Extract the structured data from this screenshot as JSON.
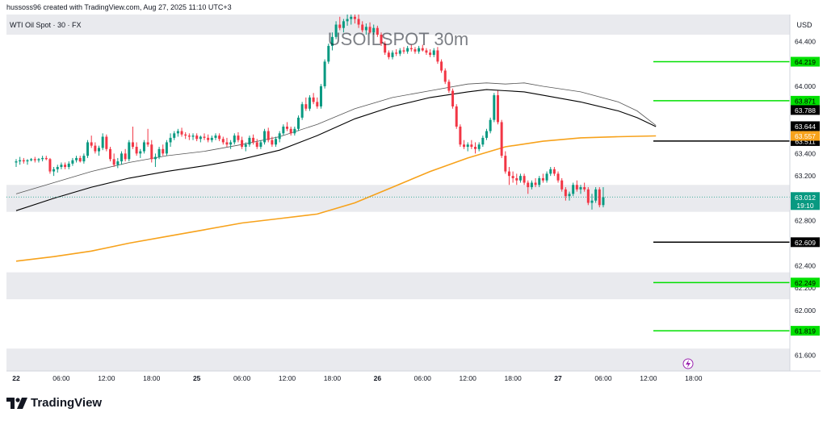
{
  "header": {
    "credit": "hussoss96 created with TradingView.com, Aug 27, 2025 11:10 UTC+3"
  },
  "footer": {
    "brand": "TradingView"
  },
  "chart_data": {
    "type": "candlestick",
    "symbol_label": "WTI Oil Spot · 30 · FX",
    "watermark": "USOILSPOT 30m",
    "currency": "USD",
    "ylim": [
      61.46,
      64.64
    ],
    "y_ticks": [
      61.6,
      61.8,
      62.0,
      62.2,
      62.4,
      62.6,
      62.8,
      63.0,
      63.2,
      63.4,
      63.6,
      63.8,
      64.0,
      64.2,
      64.4
    ],
    "x_ticks": [
      {
        "label": "22",
        "i": 0
      },
      {
        "label": "06:00",
        "i": 12
      },
      {
        "label": "12:00",
        "i": 24
      },
      {
        "label": "18:00",
        "i": 36
      },
      {
        "label": "25",
        "i": 48
      },
      {
        "label": "06:00",
        "i": 60
      },
      {
        "label": "12:00",
        "i": 72
      },
      {
        "label": "18:00",
        "i": 84
      },
      {
        "label": "26",
        "i": 96
      },
      {
        "label": "06:00",
        "i": 108
      },
      {
        "label": "12:00",
        "i": 120
      },
      {
        "label": "18:00",
        "i": 132
      },
      {
        "label": "27",
        "i": 144
      },
      {
        "label": "06:00",
        "i": 156
      },
      {
        "label": "12:00",
        "i": 168
      },
      {
        "label": "18:00",
        "i": 180
      }
    ],
    "candles": [
      [
        63.32,
        63.35,
        63.28,
        63.33
      ],
      [
        63.33,
        63.37,
        63.3,
        63.34
      ],
      [
        63.34,
        63.36,
        63.31,
        63.33
      ],
      [
        63.33,
        63.35,
        63.3,
        63.34
      ],
      [
        63.34,
        63.36,
        63.33,
        63.35
      ],
      [
        63.35,
        63.37,
        63.32,
        63.34
      ],
      [
        63.34,
        63.36,
        63.32,
        63.35
      ],
      [
        63.35,
        63.38,
        63.33,
        63.36
      ],
      [
        63.36,
        63.38,
        63.34,
        63.35
      ],
      [
        63.35,
        63.36,
        63.22,
        63.24
      ],
      [
        63.24,
        63.28,
        63.2,
        63.26
      ],
      [
        63.26,
        63.3,
        63.23,
        63.28
      ],
      [
        63.28,
        63.32,
        63.26,
        63.3
      ],
      [
        63.3,
        63.32,
        63.26,
        63.28
      ],
      [
        63.28,
        63.33,
        63.26,
        63.31
      ],
      [
        63.31,
        63.36,
        63.29,
        63.34
      ],
      [
        63.34,
        63.38,
        63.32,
        63.36
      ],
      [
        63.36,
        63.38,
        63.32,
        63.33
      ],
      [
        63.33,
        63.4,
        63.31,
        63.38
      ],
      [
        63.38,
        63.52,
        63.36,
        63.5
      ],
      [
        63.5,
        63.56,
        63.45,
        63.47
      ],
      [
        63.47,
        63.5,
        63.4,
        63.42
      ],
      [
        63.42,
        63.47,
        63.38,
        63.45
      ],
      [
        63.45,
        63.58,
        63.43,
        63.55
      ],
      [
        63.55,
        63.57,
        63.42,
        63.44
      ],
      [
        63.44,
        63.46,
        63.33,
        63.35
      ],
      [
        63.35,
        63.4,
        63.28,
        63.3
      ],
      [
        63.3,
        63.36,
        63.27,
        63.33
      ],
      [
        63.33,
        63.42,
        63.3,
        63.4
      ],
      [
        63.4,
        63.44,
        63.33,
        63.35
      ],
      [
        63.35,
        63.52,
        63.33,
        63.5
      ],
      [
        63.5,
        63.64,
        63.44,
        63.46
      ],
      [
        63.46,
        63.5,
        63.38,
        63.4
      ],
      [
        63.4,
        63.44,
        63.36,
        63.42
      ],
      [
        63.42,
        63.52,
        63.4,
        63.5
      ],
      [
        63.5,
        63.62,
        63.46,
        63.48
      ],
      [
        63.48,
        63.52,
        63.32,
        63.35
      ],
      [
        63.35,
        63.4,
        63.28,
        63.37
      ],
      [
        63.37,
        63.46,
        63.35,
        63.44
      ],
      [
        63.44,
        63.48,
        63.38,
        63.4
      ],
      [
        63.4,
        63.52,
        63.38,
        63.5
      ],
      [
        63.5,
        63.58,
        63.46,
        63.54
      ],
      [
        63.54,
        63.6,
        63.52,
        63.58
      ],
      [
        63.58,
        63.62,
        63.55,
        63.6
      ],
      [
        63.6,
        63.63,
        63.55,
        63.57
      ],
      [
        63.57,
        63.59,
        63.53,
        63.56
      ],
      [
        63.56,
        63.58,
        63.52,
        63.55
      ],
      [
        63.55,
        63.58,
        63.52,
        63.56
      ],
      [
        63.56,
        63.58,
        63.51,
        63.53
      ],
      [
        63.53,
        63.56,
        63.5,
        63.55
      ],
      [
        63.55,
        63.58,
        63.52,
        63.54
      ],
      [
        63.54,
        63.57,
        63.5,
        63.52
      ],
      [
        63.52,
        63.56,
        63.5,
        63.54
      ],
      [
        63.54,
        63.58,
        63.52,
        63.56
      ],
      [
        63.56,
        63.58,
        63.51,
        63.53
      ],
      [
        63.53,
        63.55,
        63.48,
        63.5
      ],
      [
        63.5,
        63.54,
        63.46,
        63.48
      ],
      [
        63.48,
        63.52,
        63.44,
        63.5
      ],
      [
        63.5,
        63.58,
        63.48,
        63.56
      ],
      [
        63.56,
        63.59,
        63.5,
        63.52
      ],
      [
        63.52,
        63.55,
        63.44,
        63.46
      ],
      [
        63.46,
        63.5,
        63.42,
        63.48
      ],
      [
        63.48,
        63.56,
        63.46,
        63.54
      ],
      [
        63.54,
        63.57,
        63.48,
        63.5
      ],
      [
        63.5,
        63.53,
        63.44,
        63.46
      ],
      [
        63.46,
        63.52,
        63.44,
        63.5
      ],
      [
        63.5,
        63.62,
        63.48,
        63.6
      ],
      [
        63.6,
        63.63,
        63.5,
        63.52
      ],
      [
        63.52,
        63.55,
        63.46,
        63.48
      ],
      [
        63.48,
        63.55,
        63.46,
        63.53
      ],
      [
        63.53,
        63.6,
        63.5,
        63.58
      ],
      [
        63.58,
        63.66,
        63.56,
        63.64
      ],
      [
        63.64,
        63.68,
        63.6,
        63.62
      ],
      [
        63.62,
        63.64,
        63.56,
        63.58
      ],
      [
        63.58,
        63.64,
        63.56,
        63.62
      ],
      [
        63.62,
        63.74,
        63.6,
        63.72
      ],
      [
        63.72,
        63.86,
        63.7,
        63.84
      ],
      [
        63.84,
        63.9,
        63.78,
        63.8
      ],
      [
        63.8,
        63.92,
        63.78,
        63.9
      ],
      [
        63.9,
        63.94,
        63.84,
        63.86
      ],
      [
        63.86,
        63.9,
        63.8,
        63.82
      ],
      [
        63.82,
        64.02,
        63.8,
        64.0
      ],
      [
        64.0,
        64.24,
        63.98,
        64.22
      ],
      [
        64.22,
        64.38,
        64.2,
        64.36
      ],
      [
        64.36,
        64.48,
        64.32,
        64.44
      ],
      [
        64.44,
        64.58,
        64.42,
        64.55
      ],
      [
        64.55,
        64.62,
        64.5,
        64.52
      ],
      [
        64.52,
        64.6,
        64.48,
        64.58
      ],
      [
        64.58,
        64.64,
        64.54,
        64.6
      ],
      [
        64.6,
        64.64,
        64.55,
        64.62
      ],
      [
        64.62,
        64.64,
        64.56,
        64.6
      ],
      [
        64.6,
        64.64,
        64.52,
        64.55
      ],
      [
        64.55,
        64.58,
        64.48,
        64.5
      ],
      [
        64.5,
        64.56,
        64.46,
        64.53
      ],
      [
        64.53,
        64.57,
        64.47,
        64.48
      ],
      [
        64.48,
        64.55,
        64.46,
        64.52
      ],
      [
        64.52,
        64.54,
        64.44,
        64.46
      ],
      [
        64.46,
        64.48,
        64.36,
        64.38
      ],
      [
        64.38,
        64.4,
        64.28,
        64.3
      ],
      [
        64.3,
        64.32,
        64.24,
        64.26
      ],
      [
        64.26,
        64.32,
        64.24,
        64.3
      ],
      [
        64.3,
        64.33,
        64.27,
        64.29
      ],
      [
        64.29,
        64.34,
        64.27,
        64.32
      ],
      [
        64.32,
        64.35,
        64.29,
        64.31
      ],
      [
        64.31,
        64.36,
        64.29,
        64.34
      ],
      [
        64.34,
        64.37,
        64.31,
        64.33
      ],
      [
        64.33,
        64.35,
        64.29,
        64.31
      ],
      [
        64.31,
        64.36,
        64.29,
        64.34
      ],
      [
        64.34,
        64.37,
        64.31,
        64.32
      ],
      [
        64.32,
        64.34,
        64.28,
        64.3
      ],
      [
        64.3,
        64.33,
        64.26,
        64.28
      ],
      [
        64.28,
        64.34,
        64.26,
        64.32
      ],
      [
        64.32,
        64.35,
        64.2,
        64.22
      ],
      [
        64.22,
        64.24,
        64.12,
        64.14
      ],
      [
        64.14,
        64.16,
        64.02,
        64.04
      ],
      [
        64.04,
        64.06,
        63.94,
        63.96
      ],
      [
        63.96,
        63.98,
        63.8,
        63.82
      ],
      [
        63.82,
        63.84,
        63.62,
        63.64
      ],
      [
        63.64,
        63.66,
        63.46,
        63.48
      ],
      [
        63.48,
        63.52,
        63.44,
        63.46
      ],
      [
        63.46,
        63.5,
        63.42,
        63.48
      ],
      [
        63.48,
        63.52,
        63.44,
        63.46
      ],
      [
        63.46,
        63.5,
        63.4,
        63.44
      ],
      [
        63.44,
        63.5,
        63.42,
        63.48
      ],
      [
        63.48,
        63.56,
        63.46,
        63.54
      ],
      [
        63.54,
        63.62,
        63.52,
        63.6
      ],
      [
        63.6,
        63.72,
        63.58,
        63.7
      ],
      [
        63.7,
        63.94,
        63.68,
        63.92
      ],
      [
        63.92,
        63.96,
        63.66,
        63.68
      ],
      [
        63.68,
        63.7,
        63.36,
        63.38
      ],
      [
        63.38,
        63.42,
        63.22,
        63.24
      ],
      [
        63.24,
        63.28,
        63.12,
        63.2
      ],
      [
        63.2,
        63.24,
        63.14,
        63.18
      ],
      [
        63.18,
        63.22,
        63.12,
        63.16
      ],
      [
        63.16,
        63.22,
        63.14,
        63.2
      ],
      [
        63.2,
        63.22,
        63.12,
        63.14
      ],
      [
        63.14,
        63.16,
        63.04,
        63.1
      ],
      [
        63.1,
        63.16,
        63.08,
        63.14
      ],
      [
        63.14,
        63.18,
        63.1,
        63.12
      ],
      [
        63.12,
        63.2,
        63.1,
        63.18
      ],
      [
        63.18,
        63.22,
        63.14,
        63.16
      ],
      [
        63.16,
        63.24,
        63.14,
        63.22
      ],
      [
        63.22,
        63.28,
        63.2,
        63.26
      ],
      [
        63.26,
        63.28,
        63.2,
        63.22
      ],
      [
        63.22,
        63.24,
        63.14,
        63.16
      ],
      [
        63.16,
        63.18,
        63.06,
        63.08
      ],
      [
        63.08,
        63.1,
        62.98,
        63.02
      ],
      [
        63.02,
        63.06,
        62.98,
        63.04
      ],
      [
        63.04,
        63.14,
        63.02,
        63.12
      ],
      [
        63.12,
        63.16,
        63.06,
        63.08
      ],
      [
        63.08,
        63.12,
        63.04,
        63.1
      ],
      [
        63.1,
        63.14,
        63.06,
        63.08
      ],
      [
        63.08,
        63.1,
        62.94,
        62.96
      ],
      [
        62.96,
        63.04,
        62.9,
        62.98
      ],
      [
        62.98,
        63.1,
        62.96,
        63.08
      ],
      [
        63.08,
        63.1,
        62.92,
        62.94
      ],
      [
        62.94,
        63.1,
        62.92,
        63.01
      ]
    ],
    "sma_upper": [
      [
        0,
        63.04
      ],
      [
        10,
        63.14
      ],
      [
        20,
        63.24
      ],
      [
        30,
        63.32
      ],
      [
        40,
        63.38
      ],
      [
        50,
        63.42
      ],
      [
        60,
        63.48
      ],
      [
        70,
        63.55
      ],
      [
        80,
        63.66
      ],
      [
        90,
        63.8
      ],
      [
        100,
        63.9
      ],
      [
        110,
        63.96
      ],
      [
        120,
        64.02
      ],
      [
        125,
        64.03
      ],
      [
        130,
        64.02
      ],
      [
        135,
        64.03
      ],
      [
        140,
        64.0
      ],
      [
        150,
        63.95
      ],
      [
        160,
        63.86
      ],
      [
        165,
        63.78
      ],
      [
        170,
        63.65
      ]
    ],
    "sma_lower": [
      [
        0,
        62.89
      ],
      [
        10,
        63.0
      ],
      [
        20,
        63.1
      ],
      [
        30,
        63.18
      ],
      [
        40,
        63.24
      ],
      [
        50,
        63.29
      ],
      [
        60,
        63.35
      ],
      [
        70,
        63.43
      ],
      [
        80,
        63.56
      ],
      [
        90,
        63.71
      ],
      [
        100,
        63.82
      ],
      [
        110,
        63.9
      ],
      [
        120,
        63.95
      ],
      [
        125,
        63.97
      ],
      [
        130,
        63.96
      ],
      [
        135,
        63.95
      ],
      [
        140,
        63.92
      ],
      [
        150,
        63.86
      ],
      [
        160,
        63.78
      ],
      [
        165,
        63.72
      ],
      [
        170,
        63.64
      ]
    ],
    "ema_long": [
      [
        0,
        62.44
      ],
      [
        10,
        62.48
      ],
      [
        20,
        62.53
      ],
      [
        30,
        62.6
      ],
      [
        40,
        62.66
      ],
      [
        50,
        62.72
      ],
      [
        60,
        62.78
      ],
      [
        70,
        62.82
      ],
      [
        80,
        62.86
      ],
      [
        90,
        62.96
      ],
      [
        100,
        63.1
      ],
      [
        110,
        63.24
      ],
      [
        120,
        63.36
      ],
      [
        130,
        63.46
      ],
      [
        140,
        63.51
      ],
      [
        150,
        63.54
      ],
      [
        160,
        63.55
      ],
      [
        170,
        63.557
      ]
    ],
    "levels": [
      {
        "value": 64.219,
        "label": "64.219",
        "color": "#00e000"
      },
      {
        "value": 63.871,
        "label": "63.871",
        "color": "#00e000"
      },
      {
        "value": 63.511,
        "label": "63.511",
        "color": "#000000"
      },
      {
        "value": 62.609,
        "label": "62.609",
        "color": "#000000"
      },
      {
        "value": 62.249,
        "label": "62.249",
        "color": "#00e000"
      },
      {
        "value": 61.819,
        "label": "61.819",
        "color": "#00e000"
      }
    ],
    "price_tags": [
      {
        "value": 63.788,
        "label": "63.788",
        "bg": "#000000",
        "fg": "#ffffff"
      },
      {
        "value": 63.644,
        "label": "63.644",
        "bg": "#000000",
        "fg": "#ffffff"
      },
      {
        "value": 63.557,
        "label": "63.557",
        "bg": "#f7a21b",
        "fg": "#ffffff"
      }
    ],
    "last_price": {
      "value": 63.012,
      "label": "63.012",
      "countdown": "19:10",
      "color": "#089981"
    },
    "bands": [
      [
        64.46,
        64.64
      ],
      [
        62.88,
        63.12
      ],
      [
        62.1,
        62.34
      ],
      [
        61.46,
        61.66
      ]
    ],
    "colors": {
      "up": "#089981",
      "down": "#f23645",
      "sma": "#000000",
      "ema": "#f7a21b",
      "band": "#e9eaee",
      "axis_text": "#131722"
    }
  }
}
